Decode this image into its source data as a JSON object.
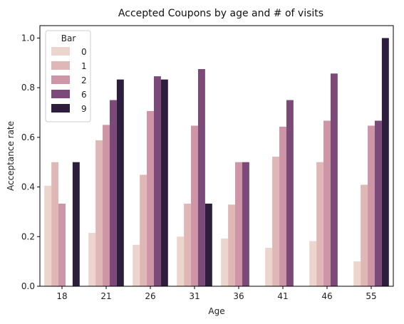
{
  "chart_data": {
    "type": "bar",
    "title": "Accepted Coupons by age and # of visits",
    "xlabel": "Age",
    "ylabel": "Acceptance rate",
    "categories": [
      "18",
      "21",
      "26",
      "31",
      "36",
      "41",
      "46",
      "55"
    ],
    "ylim": [
      0,
      1.05
    ],
    "yticks": [
      "0.0",
      "0.2",
      "0.4",
      "0.6",
      "0.8",
      "1.0"
    ],
    "grid": false,
    "legend": {
      "title": "Bar",
      "placement": "top-left"
    },
    "series": [
      {
        "name": "0",
        "color": "#ecd5cc",
        "values": [
          0.405,
          0.215,
          0.167,
          0.2,
          0.192,
          0.155,
          0.182,
          0.1
        ]
      },
      {
        "name": "1",
        "color": "#dfb7b6",
        "values": [
          0.5,
          0.588,
          0.449,
          0.333,
          0.329,
          0.522,
          0.5,
          0.409
        ]
      },
      {
        "name": "2",
        "color": "#cd95a6",
        "values": [
          0.333,
          0.65,
          0.706,
          0.647,
          0.5,
          0.643,
          0.667,
          0.647
        ]
      },
      {
        "name": "6",
        "color": "#7b4a78",
        "values": [
          null,
          0.75,
          0.846,
          0.875,
          0.5,
          0.75,
          0.857,
          0.667
        ]
      },
      {
        "name": "9",
        "color": "#2d1e3e",
        "values": [
          0.5,
          0.833,
          0.833,
          0.333,
          null,
          null,
          null,
          1.0
        ]
      }
    ]
  }
}
